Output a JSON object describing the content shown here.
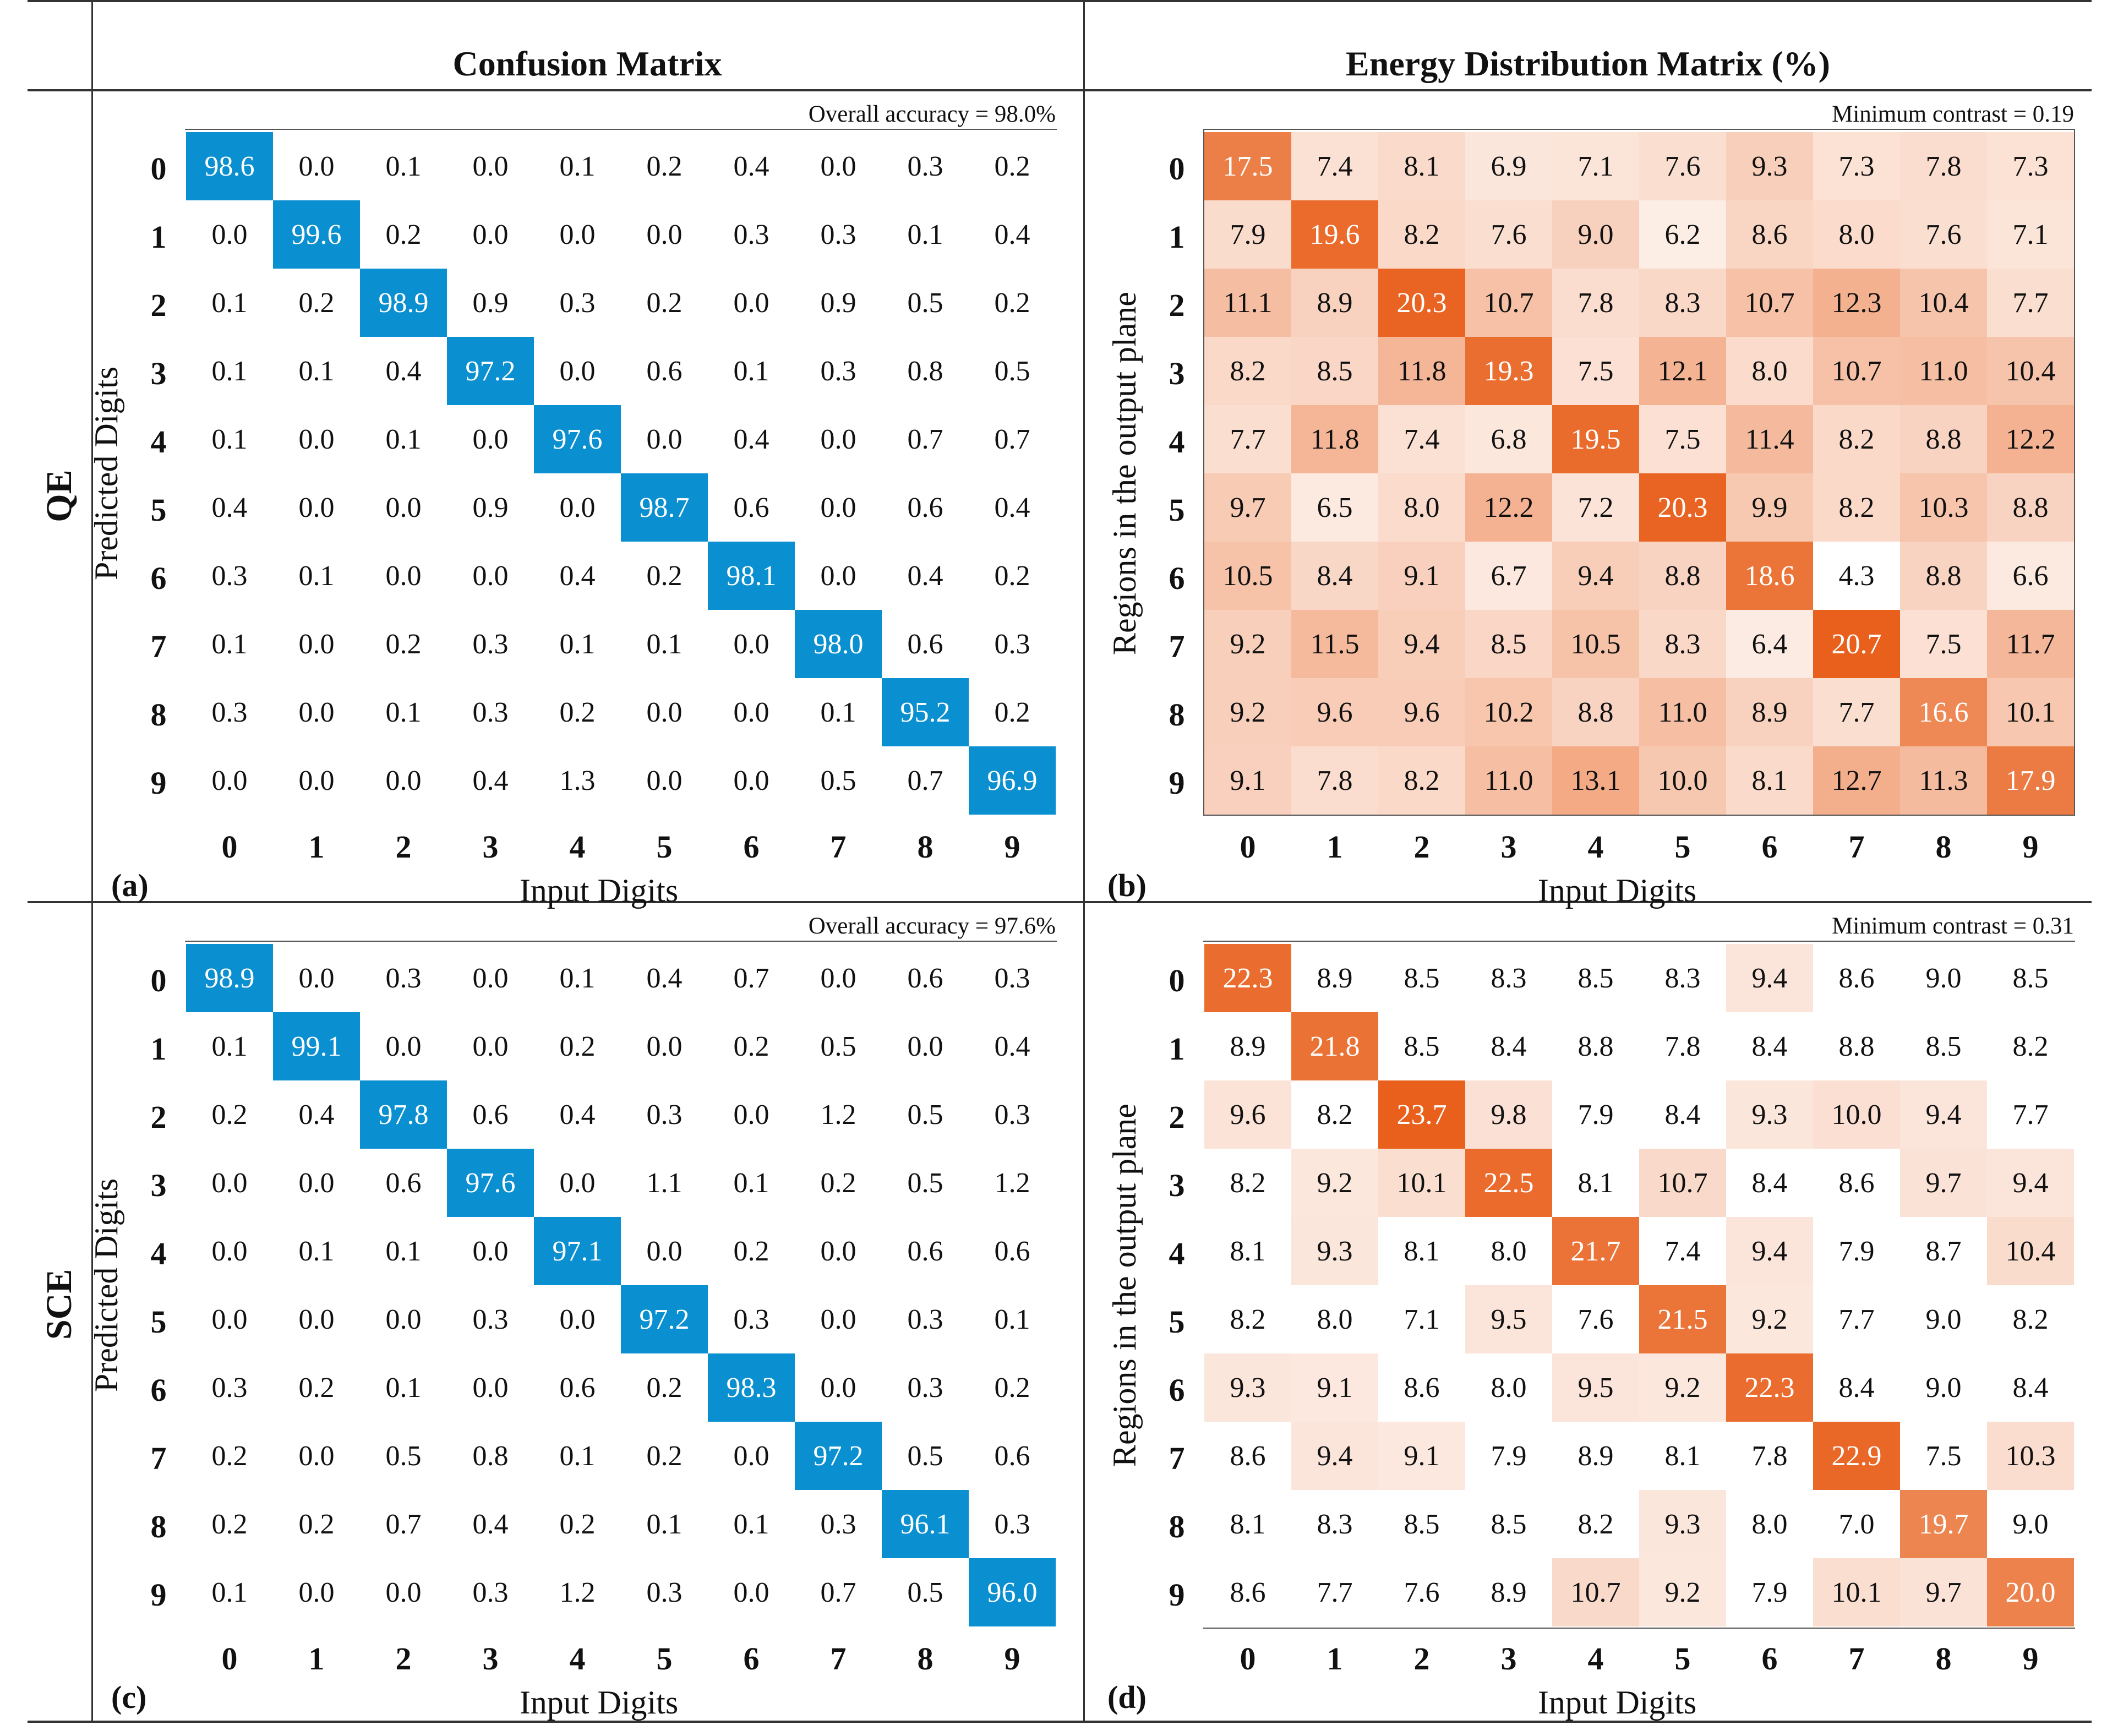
{
  "header": {
    "col_left": "Confusion Matrix",
    "col_right": "Energy Distribution Matrix (%)",
    "row_top": "QE",
    "row_bottom": "SCE"
  },
  "colors": {
    "confusion_diag": "#0a8fd0",
    "energy_max": "#e8601c",
    "text_dark": "#111111",
    "text_light": "#ffffff"
  },
  "chart_data": [
    {
      "id": "a",
      "type": "heatmap",
      "panel_label": "(a)",
      "title": "Confusion Matrix",
      "annotation": "Overall accuracy = 98.0%",
      "xlabel": "Input Digits",
      "ylabel": "Predicted Digits",
      "x_ticks": [
        "0",
        "1",
        "2",
        "3",
        "4",
        "5",
        "6",
        "7",
        "8",
        "9"
      ],
      "y_ticks": [
        "0",
        "1",
        "2",
        "3",
        "4",
        "5",
        "6",
        "7",
        "8",
        "9"
      ],
      "values": [
        [
          "98.6",
          "0.0",
          "0.1",
          "0.0",
          "0.1",
          "0.2",
          "0.4",
          "0.0",
          "0.3",
          "0.2"
        ],
        [
          "0.0",
          "99.6",
          "0.2",
          "0.0",
          "0.0",
          "0.0",
          "0.3",
          "0.3",
          "0.1",
          "0.4"
        ],
        [
          "0.1",
          "0.2",
          "98.9",
          "0.9",
          "0.3",
          "0.2",
          "0.0",
          "0.9",
          "0.5",
          "0.2"
        ],
        [
          "0.1",
          "0.1",
          "0.4",
          "97.2",
          "0.0",
          "0.6",
          "0.1",
          "0.3",
          "0.8",
          "0.5"
        ],
        [
          "0.1",
          "0.0",
          "0.1",
          "0.0",
          "97.6",
          "0.0",
          "0.4",
          "0.0",
          "0.7",
          "0.7"
        ],
        [
          "0.4",
          "0.0",
          "0.0",
          "0.9",
          "0.0",
          "98.7",
          "0.6",
          "0.0",
          "0.6",
          "0.4"
        ],
        [
          "0.3",
          "0.1",
          "0.0",
          "0.0",
          "0.4",
          "0.2",
          "98.1",
          "0.0",
          "0.4",
          "0.2"
        ],
        [
          "0.1",
          "0.0",
          "0.2",
          "0.3",
          "0.1",
          "0.1",
          "0.0",
          "98.0",
          "0.6",
          "0.3"
        ],
        [
          "0.3",
          "0.0",
          "0.1",
          "0.3",
          "0.2",
          "0.0",
          "0.0",
          "0.1",
          "95.2",
          "0.2"
        ],
        [
          "0.0",
          "0.0",
          "0.0",
          "0.4",
          "1.3",
          "0.0",
          "0.0",
          "0.5",
          "0.7",
          "96.9"
        ]
      ]
    },
    {
      "id": "b",
      "type": "heatmap",
      "panel_label": "(b)",
      "title": "Energy Distribution Matrix (%)",
      "annotation": "Minimum contrast = 0.19",
      "xlabel": "Input Digits",
      "ylabel": "Regions in the output plane",
      "x_ticks": [
        "0",
        "1",
        "2",
        "3",
        "4",
        "5",
        "6",
        "7",
        "8",
        "9"
      ],
      "y_ticks": [
        "0",
        "1",
        "2",
        "3",
        "4",
        "5",
        "6",
        "7",
        "8",
        "9"
      ],
      "values": [
        [
          "17.5",
          "7.4",
          "8.1",
          "6.9",
          "7.1",
          "7.6",
          "9.3",
          "7.3",
          "7.8",
          "7.3"
        ],
        [
          "7.9",
          "19.6",
          "8.2",
          "7.6",
          "9.0",
          "6.2",
          "8.6",
          "8.0",
          "7.6",
          "7.1"
        ],
        [
          "11.1",
          "8.9",
          "20.3",
          "10.7",
          "7.8",
          "8.3",
          "10.7",
          "12.3",
          "10.4",
          "7.7"
        ],
        [
          "8.2",
          "8.5",
          "11.8",
          "19.3",
          "7.5",
          "12.1",
          "8.0",
          "10.7",
          "11.0",
          "10.4"
        ],
        [
          "7.7",
          "11.8",
          "7.4",
          "6.8",
          "19.5",
          "7.5",
          "11.4",
          "8.2",
          "8.8",
          "12.2"
        ],
        [
          "9.7",
          "6.5",
          "8.0",
          "12.2",
          "7.2",
          "20.3",
          "9.9",
          "8.2",
          "10.3",
          "8.8"
        ],
        [
          "10.5",
          "8.4",
          "9.1",
          "6.7",
          "9.4",
          "8.8",
          "18.6",
          "4.3",
          "8.8",
          "6.6"
        ],
        [
          "9.2",
          "11.5",
          "9.4",
          "8.5",
          "10.5",
          "8.3",
          "6.4",
          "20.7",
          "7.5",
          "11.7"
        ],
        [
          "9.2",
          "9.6",
          "9.6",
          "10.2",
          "8.8",
          "11.0",
          "8.9",
          "7.7",
          "16.6",
          "10.1"
        ],
        [
          "9.1",
          "7.8",
          "8.2",
          "11.0",
          "13.1",
          "10.0",
          "8.1",
          "12.7",
          "11.3",
          "17.9"
        ]
      ]
    },
    {
      "id": "c",
      "type": "heatmap",
      "panel_label": "(c)",
      "title": "Confusion Matrix",
      "annotation": "Overall accuracy = 97.6%",
      "xlabel": "Input Digits",
      "ylabel": "Predicted Digits",
      "x_ticks": [
        "0",
        "1",
        "2",
        "3",
        "4",
        "5",
        "6",
        "7",
        "8",
        "9"
      ],
      "y_ticks": [
        "0",
        "1",
        "2",
        "3",
        "4",
        "5",
        "6",
        "7",
        "8",
        "9"
      ],
      "values": [
        [
          "98.9",
          "0.0",
          "0.3",
          "0.0",
          "0.1",
          "0.4",
          "0.7",
          "0.0",
          "0.6",
          "0.3"
        ],
        [
          "0.1",
          "99.1",
          "0.0",
          "0.0",
          "0.2",
          "0.0",
          "0.2",
          "0.5",
          "0.0",
          "0.4"
        ],
        [
          "0.2",
          "0.4",
          "97.8",
          "0.6",
          "0.4",
          "0.3",
          "0.0",
          "1.2",
          "0.5",
          "0.3"
        ],
        [
          "0.0",
          "0.0",
          "0.6",
          "97.6",
          "0.0",
          "1.1",
          "0.1",
          "0.2",
          "0.5",
          "1.2"
        ],
        [
          "0.0",
          "0.1",
          "0.1",
          "0.0",
          "97.1",
          "0.0",
          "0.2",
          "0.0",
          "0.6",
          "0.6"
        ],
        [
          "0.0",
          "0.0",
          "0.0",
          "0.3",
          "0.0",
          "97.2",
          "0.3",
          "0.0",
          "0.3",
          "0.1"
        ],
        [
          "0.3",
          "0.2",
          "0.1",
          "0.0",
          "0.6",
          "0.2",
          "98.3",
          "0.0",
          "0.3",
          "0.2"
        ],
        [
          "0.2",
          "0.0",
          "0.5",
          "0.8",
          "0.1",
          "0.2",
          "0.0",
          "97.2",
          "0.5",
          "0.6"
        ],
        [
          "0.2",
          "0.2",
          "0.7",
          "0.4",
          "0.2",
          "0.1",
          "0.1",
          "0.3",
          "96.1",
          "0.3"
        ],
        [
          "0.1",
          "0.0",
          "0.0",
          "0.3",
          "1.2",
          "0.3",
          "0.0",
          "0.7",
          "0.5",
          "96.0"
        ]
      ]
    },
    {
      "id": "d",
      "type": "heatmap",
      "panel_label": "(d)",
      "title": "Energy Distribution Matrix (%)",
      "annotation": "Minimum contrast = 0.31",
      "xlabel": "Input Digits",
      "ylabel": "Regions in the output plane",
      "x_ticks": [
        "0",
        "1",
        "2",
        "3",
        "4",
        "5",
        "6",
        "7",
        "8",
        "9"
      ],
      "y_ticks": [
        "0",
        "1",
        "2",
        "3",
        "4",
        "5",
        "6",
        "7",
        "8",
        "9"
      ],
      "values": [
        [
          "22.3",
          "8.9",
          "8.5",
          "8.3",
          "8.5",
          "8.3",
          "9.4",
          "8.6",
          "9.0",
          "8.5"
        ],
        [
          "8.9",
          "21.8",
          "8.5",
          "8.4",
          "8.8",
          "7.8",
          "8.4",
          "8.8",
          "8.5",
          "8.2"
        ],
        [
          "9.6",
          "8.2",
          "23.7",
          "9.8",
          "7.9",
          "8.4",
          "9.3",
          "10.0",
          "9.4",
          "7.7"
        ],
        [
          "8.2",
          "9.2",
          "10.1",
          "22.5",
          "8.1",
          "10.7",
          "8.4",
          "8.6",
          "9.7",
          "9.4"
        ],
        [
          "8.1",
          "9.3",
          "8.1",
          "8.0",
          "21.7",
          "7.4",
          "9.4",
          "7.9",
          "8.7",
          "10.4"
        ],
        [
          "8.2",
          "8.0",
          "7.1",
          "9.5",
          "7.6",
          "21.5",
          "9.2",
          "7.7",
          "9.0",
          "8.2"
        ],
        [
          "9.3",
          "9.1",
          "8.6",
          "8.0",
          "9.5",
          "9.2",
          "22.3",
          "8.4",
          "9.0",
          "8.4"
        ],
        [
          "8.6",
          "9.4",
          "9.1",
          "7.9",
          "8.9",
          "8.1",
          "7.8",
          "22.9",
          "7.5",
          "10.3"
        ],
        [
          "8.1",
          "8.3",
          "8.5",
          "8.5",
          "8.2",
          "9.3",
          "8.0",
          "7.0",
          "19.7",
          "9.0"
        ],
        [
          "8.6",
          "7.7",
          "7.6",
          "8.9",
          "10.7",
          "9.2",
          "7.9",
          "10.1",
          "9.7",
          "20.0"
        ]
      ]
    }
  ]
}
